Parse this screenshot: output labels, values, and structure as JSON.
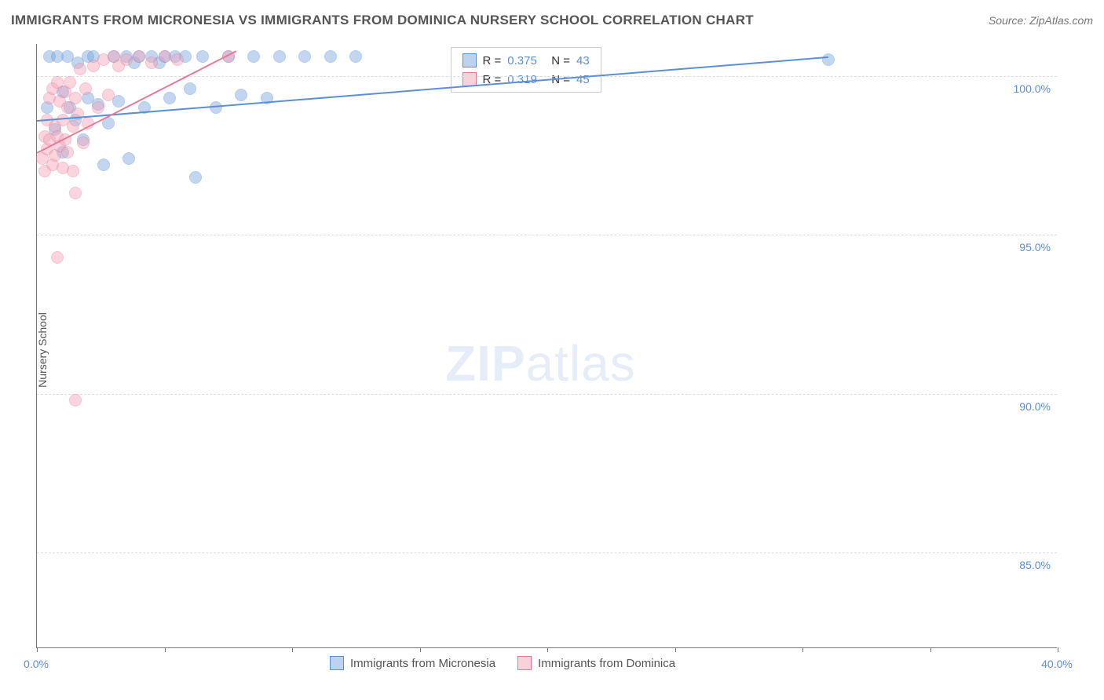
{
  "title": "IMMIGRANTS FROM MICRONESIA VS IMMIGRANTS FROM DOMINICA NURSERY SCHOOL CORRELATION CHART",
  "source_label": "Source: ",
  "source_value": "ZipAtlas.com",
  "y_axis_label": "Nursery School",
  "watermark_bold": "ZIP",
  "watermark_rest": "atlas",
  "chart": {
    "type": "scatter",
    "background_color": "#ffffff",
    "grid_color": "#dcdcdc",
    "axis_color": "#777777",
    "tick_label_color": "#5b8fd6",
    "title_color": "#555555",
    "title_fontsize": 17,
    "tick_fontsize": 14,
    "xlim": [
      0,
      40
    ],
    "ylim": [
      82,
      101
    ],
    "x_ticks": [
      0,
      5,
      10,
      15,
      20,
      25,
      30,
      35,
      40
    ],
    "x_tick_labels": [
      "0.0%",
      "",
      "",
      "",
      "",
      "",
      "",
      "",
      "40.0%"
    ],
    "y_ticks": [
      85,
      90,
      95,
      100
    ],
    "y_tick_labels": [
      "85.0%",
      "90.0%",
      "95.0%",
      "100.0%"
    ],
    "point_radius": 8,
    "point_opacity": 0.45,
    "series": [
      {
        "name": "Immigrants from Micronesia",
        "color_fill": "#7aa6dd",
        "color_stroke": "#5b8fd6",
        "R": "0.375",
        "N": "43",
        "trend": {
          "x1": 0,
          "y1": 98.6,
          "x2": 31,
          "y2": 100.6,
          "width": 2
        },
        "points": [
          [
            0.4,
            99.0
          ],
          [
            0.5,
            100.6
          ],
          [
            0.7,
            98.3
          ],
          [
            0.8,
            100.6
          ],
          [
            1.0,
            99.5
          ],
          [
            1.0,
            97.6
          ],
          [
            1.2,
            100.6
          ],
          [
            1.3,
            99.0
          ],
          [
            1.5,
            98.6
          ],
          [
            1.6,
            100.4
          ],
          [
            1.8,
            98.0
          ],
          [
            2.0,
            100.6
          ],
          [
            2.0,
            99.3
          ],
          [
            2.2,
            100.6
          ],
          [
            2.4,
            99.1
          ],
          [
            2.6,
            97.2
          ],
          [
            2.8,
            98.5
          ],
          [
            3.0,
            100.6
          ],
          [
            3.2,
            99.2
          ],
          [
            3.5,
            100.6
          ],
          [
            3.6,
            97.4
          ],
          [
            3.8,
            100.4
          ],
          [
            4.0,
            100.6
          ],
          [
            4.2,
            99.0
          ],
          [
            4.5,
            100.6
          ],
          [
            4.8,
            100.4
          ],
          [
            5.0,
            100.6
          ],
          [
            5.2,
            99.3
          ],
          [
            5.4,
            100.6
          ],
          [
            5.8,
            100.6
          ],
          [
            6.0,
            99.6
          ],
          [
            6.2,
            96.8
          ],
          [
            6.5,
            100.6
          ],
          [
            7.0,
            99.0
          ],
          [
            7.5,
            100.6
          ],
          [
            8.0,
            99.4
          ],
          [
            8.5,
            100.6
          ],
          [
            9.0,
            99.3
          ],
          [
            9.5,
            100.6
          ],
          [
            10.5,
            100.6
          ],
          [
            11.5,
            100.6
          ],
          [
            12.5,
            100.6
          ],
          [
            31.0,
            100.5
          ]
        ]
      },
      {
        "name": "Immigrants from Dominica",
        "color_fill": "#f4a3b8",
        "color_stroke": "#e77a9a",
        "R": "0.319",
        "N": "45",
        "trend": {
          "x1": 0,
          "y1": 97.6,
          "x2": 7.8,
          "y2": 100.8,
          "width": 2
        },
        "points": [
          [
            0.2,
            97.4
          ],
          [
            0.3,
            98.1
          ],
          [
            0.3,
            97.0
          ],
          [
            0.4,
            98.6
          ],
          [
            0.4,
            97.7
          ],
          [
            0.5,
            99.3
          ],
          [
            0.5,
            98.0
          ],
          [
            0.6,
            97.2
          ],
          [
            0.6,
            99.6
          ],
          [
            0.7,
            98.4
          ],
          [
            0.7,
            97.5
          ],
          [
            0.8,
            99.8
          ],
          [
            0.8,
            98.1
          ],
          [
            0.9,
            97.8
          ],
          [
            0.9,
            99.2
          ],
          [
            1.0,
            98.6
          ],
          [
            1.0,
            97.1
          ],
          [
            1.1,
            99.5
          ],
          [
            1.1,
            98.0
          ],
          [
            1.2,
            99.0
          ],
          [
            1.2,
            97.6
          ],
          [
            1.3,
            99.8
          ],
          [
            1.4,
            98.4
          ],
          [
            1.4,
            97.0
          ],
          [
            1.5,
            99.3
          ],
          [
            1.5,
            96.3
          ],
          [
            1.6,
            98.8
          ],
          [
            1.7,
            100.2
          ],
          [
            1.8,
            97.9
          ],
          [
            1.9,
            99.6
          ],
          [
            2.0,
            98.5
          ],
          [
            0.8,
            94.3
          ],
          [
            2.2,
            100.3
          ],
          [
            2.4,
            99.0
          ],
          [
            2.6,
            100.5
          ],
          [
            2.8,
            99.4
          ],
          [
            3.0,
            100.6
          ],
          [
            3.2,
            100.3
          ],
          [
            3.5,
            100.5
          ],
          [
            1.5,
            89.8
          ],
          [
            4.0,
            100.6
          ],
          [
            4.5,
            100.4
          ],
          [
            5.0,
            100.6
          ],
          [
            5.5,
            100.5
          ],
          [
            7.5,
            100.6
          ]
        ]
      }
    ],
    "legend_top": {
      "r_label": "R =",
      "n_label": "N ="
    },
    "legend_bottom": {
      "items": [
        "Immigrants from Micronesia",
        "Immigrants from Dominica"
      ]
    }
  }
}
